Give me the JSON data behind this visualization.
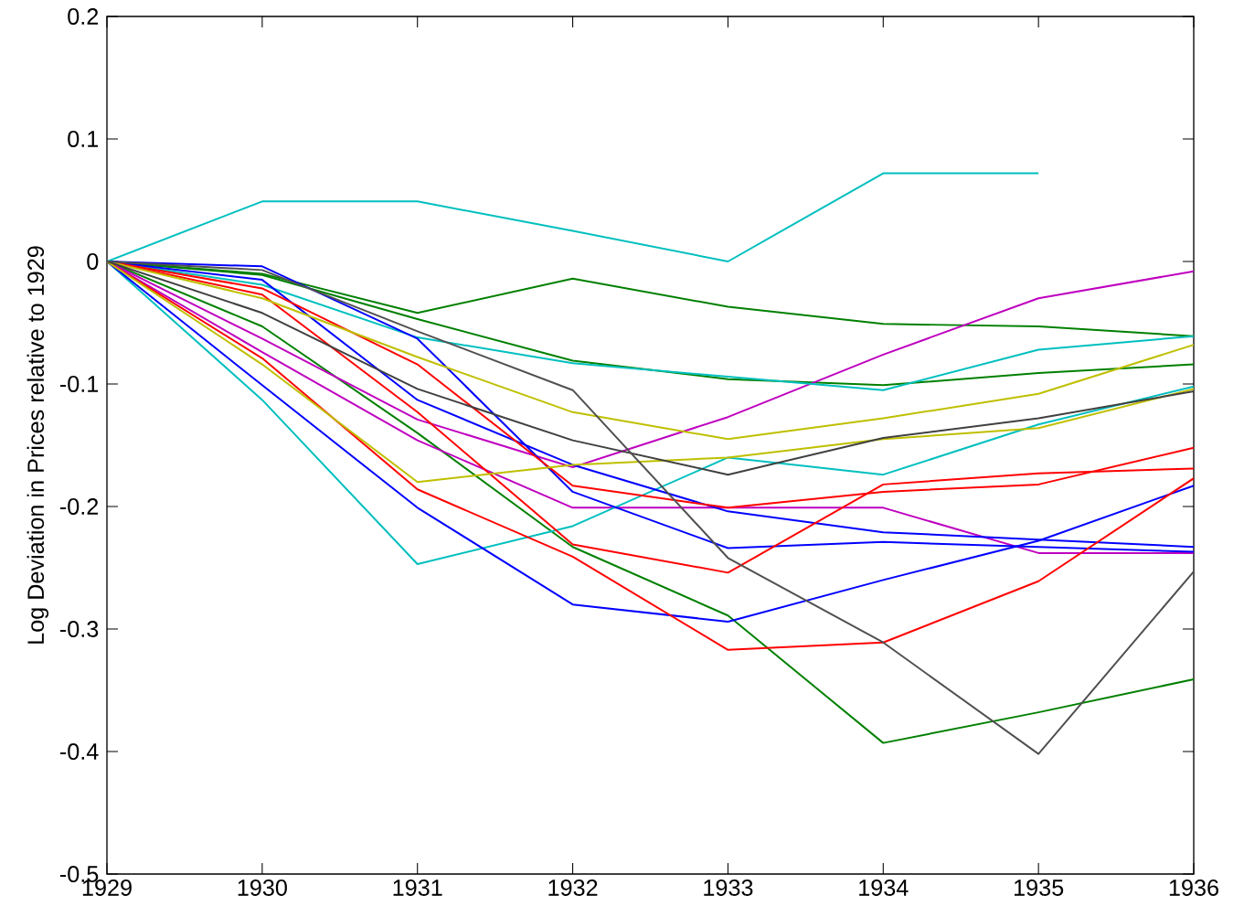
{
  "chart_data": {
    "type": "line",
    "ylabel": "Log Deviation in Prices relative to 1929",
    "x": [
      1929,
      1930,
      1931,
      1932,
      1933,
      1934,
      1935,
      1936
    ],
    "xlim": [
      1929,
      1936
    ],
    "xticks": [
      1929,
      1930,
      1931,
      1932,
      1933,
      1934,
      1935,
      1936
    ],
    "ylim": [
      -0.5,
      0.2
    ],
    "yticks": [
      -0.5,
      -0.4,
      -0.3,
      -0.2,
      -0.1,
      0,
      0.1,
      0.2
    ],
    "grid": false,
    "marker": "none",
    "line_style": "solid",
    "series": [
      {
        "color": "#00bfbf",
        "values": [
          0,
          0.049,
          0.049,
          0.025,
          0.0,
          0.072,
          0.072,
          null
        ]
      },
      {
        "color": "#008000",
        "values": [
          0,
          -0.01,
          -0.042,
          -0.014,
          -0.037,
          -0.051,
          -0.053,
          -0.061
        ]
      },
      {
        "color": "#008000",
        "values": [
          0,
          -0.011,
          -0.047,
          -0.081,
          -0.096,
          -0.101,
          -0.091,
          -0.084
        ]
      },
      {
        "color": "#008000",
        "values": [
          0,
          -0.053,
          -0.14,
          -0.233,
          -0.289,
          -0.393,
          -0.368,
          -0.341
        ]
      },
      {
        "color": "#bf00bf",
        "values": [
          0,
          -0.063,
          -0.129,
          -0.168,
          -0.127,
          -0.076,
          -0.03,
          -0.008
        ]
      },
      {
        "color": "#bf00bf",
        "values": [
          0,
          -0.074,
          -0.146,
          -0.201,
          -0.201,
          -0.201,
          -0.238,
          -0.238
        ]
      },
      {
        "color": "#00bfbf",
        "values": [
          0,
          -0.019,
          -0.062,
          -0.083,
          -0.094,
          -0.105,
          -0.072,
          -0.061
        ]
      },
      {
        "color": "#00bfbf",
        "values": [
          0,
          -0.113,
          -0.247,
          -0.216,
          -0.16,
          -0.174,
          -0.133,
          -0.102
        ]
      },
      {
        "color": "#0000ff",
        "values": [
          0,
          -0.004,
          -0.063,
          -0.188,
          -0.234,
          -0.229,
          -0.233,
          -0.237
        ]
      },
      {
        "color": "#0000ff",
        "values": [
          0,
          -0.015,
          -0.113,
          -0.166,
          -0.204,
          -0.221,
          -0.227,
          -0.233
        ]
      },
      {
        "color": "#0000ff",
        "values": [
          0,
          -0.101,
          -0.201,
          -0.28,
          -0.294,
          -0.26,
          -0.228,
          -0.183
        ]
      },
      {
        "color": "#ff0000",
        "values": [
          0,
          -0.022,
          -0.084,
          -0.183,
          -0.201,
          -0.188,
          -0.182,
          -0.152
        ]
      },
      {
        "color": "#ff0000",
        "values": [
          0,
          -0.027,
          -0.123,
          -0.231,
          -0.254,
          -0.182,
          -0.173,
          -0.169
        ]
      },
      {
        "color": "#ff0000",
        "values": [
          0,
          -0.079,
          -0.186,
          -0.241,
          -0.317,
          -0.311,
          -0.261,
          -0.177
        ]
      },
      {
        "color": "#bfbf00",
        "values": [
          0,
          -0.03,
          -0.078,
          -0.123,
          -0.145,
          -0.128,
          -0.108,
          -0.068
        ]
      },
      {
        "color": "#bfbf00",
        "values": [
          0,
          -0.084,
          -0.18,
          -0.166,
          -0.16,
          -0.145,
          -0.136,
          -0.104
        ]
      },
      {
        "color": "#404040",
        "values": [
          0,
          -0.042,
          -0.104,
          -0.146,
          -0.174,
          -0.144,
          -0.128,
          -0.106
        ]
      },
      {
        "color": "#505050",
        "values": [
          0,
          -0.007,
          -0.057,
          -0.105,
          -0.242,
          -0.311,
          -0.402,
          -0.253
        ]
      }
    ]
  }
}
